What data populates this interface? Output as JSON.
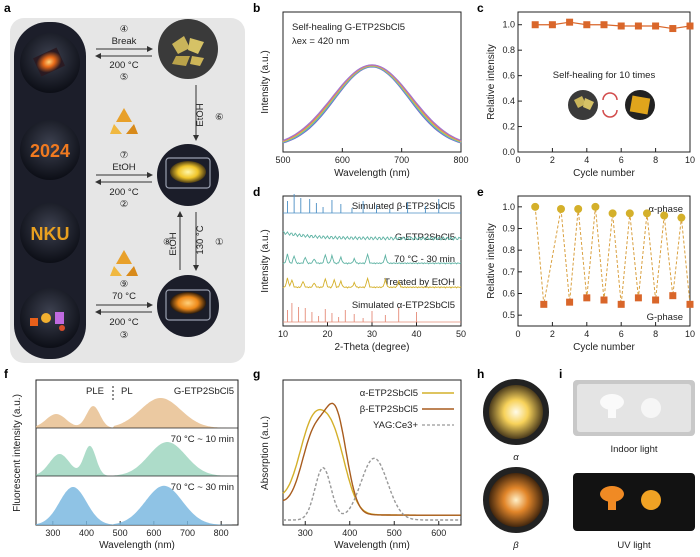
{
  "panel_letters": [
    "a",
    "b",
    "c",
    "d",
    "e",
    "f",
    "g",
    "h",
    "i"
  ],
  "colors": {
    "orange": "#d9662a",
    "gold": "#d4b02a",
    "blue": "#4b8fc4",
    "teal": "#5fb3a4",
    "salmon": "#e58b78",
    "brown": "#a85c1e",
    "peach": "#e8bf90",
    "mint": "#9fd6c0",
    "sky": "#7bb8e0",
    "gray": "#999999"
  },
  "panel_a": {
    "steps": {
      "s4": "④",
      "break": "Break",
      "t200a": "200 °C",
      "s5": "⑤",
      "etoh6": "EtOH",
      "s6": "⑥",
      "s7": "⑦",
      "etoh7": "EtOH",
      "t200b": "200 °C",
      "s2": "②",
      "s8": "⑧",
      "etoh8": "EtOH",
      "t130": "130 °C",
      "s1": "①",
      "s9": "⑨",
      "t70": "70 °C",
      "t200c": "200 °C",
      "s3": "③"
    },
    "glow_labels": {
      "year": "2024",
      "nku": "NKU"
    },
    "icons": [
      "recycle-icon",
      "recycle-icon"
    ]
  },
  "chart_data": [
    {
      "panel": "b",
      "type": "line",
      "title": "Self-healing G-ETP2SbCl5",
      "excitation": "λex = 420 nm",
      "xlabel": "Wavelength (nm)",
      "ylabel": "Intensity (a.u.)",
      "xlim": [
        500,
        800
      ],
      "xticks": [
        500,
        600,
        700,
        800
      ],
      "series_count": 10,
      "peak_x": 650
    },
    {
      "panel": "c",
      "type": "line",
      "xlabel": "Cycle number",
      "ylabel": "Relative intensity",
      "xlim": [
        0,
        10
      ],
      "ylim": [
        0.0,
        1.1
      ],
      "xticks": [
        0,
        2,
        4,
        6,
        8,
        10
      ],
      "yticks": [
        0.0,
        0.2,
        0.4,
        0.6,
        0.8,
        1.0
      ],
      "annotation": "Self-healing for 10 times",
      "x": [
        1,
        2,
        3,
        4,
        5,
        6,
        7,
        8,
        9,
        10
      ],
      "y": [
        1.0,
        1.0,
        1.02,
        1.0,
        1.0,
        0.99,
        0.99,
        0.99,
        0.97,
        0.99
      ]
    },
    {
      "panel": "d",
      "type": "line",
      "xlabel": "2-Theta (degree)",
      "ylabel": "Intensity (a.u.)",
      "xlim": [
        10,
        50
      ],
      "xticks": [
        10,
        20,
        30,
        40,
        50
      ],
      "series": [
        {
          "name": "Simulated β-ETP2SbCl5"
        },
        {
          "name": "G-ETP2SbCl5"
        },
        {
          "name": "70 °C - 30 min"
        },
        {
          "name": "Treated by EtOH"
        },
        {
          "name": "Simulated α-ETP2SbCl5"
        }
      ]
    },
    {
      "panel": "e",
      "type": "line",
      "xlabel": "Cycle number",
      "ylabel": "Relative intensity",
      "xlim": [
        0,
        10
      ],
      "ylim": [
        0.45,
        1.05
      ],
      "xticks": [
        0,
        2,
        4,
        6,
        8,
        10
      ],
      "yticks": [
        0.5,
        0.6,
        0.7,
        0.8,
        0.9,
        1.0
      ],
      "labels": {
        "alpha": "α-phase",
        "g": "G-phase"
      },
      "alpha_x": [
        1,
        2.5,
        3.5,
        4.5,
        5.5,
        6.5,
        7.5,
        8.5,
        9.5
      ],
      "alpha_y": [
        1.0,
        0.99,
        0.99,
        1.0,
        0.97,
        0.97,
        0.97,
        0.96,
        0.95
      ],
      "g_x": [
        1.5,
        3,
        4,
        5,
        6,
        7,
        8,
        9,
        10
      ],
      "g_y": [
        0.55,
        0.56,
        0.58,
        0.57,
        0.55,
        0.58,
        0.57,
        0.59,
        0.55
      ]
    },
    {
      "panel": "f",
      "type": "area",
      "xlabel": "Wavelength (nm)",
      "ylabel": "Fluorescent intensity (a.u.)",
      "xlim": [
        250,
        850
      ],
      "xticks": [
        300,
        400,
        500,
        600,
        700,
        800
      ],
      "labels": {
        "ple": "PLE",
        "pl": "PL"
      },
      "series": [
        {
          "name": "G-ETP2SbCl5"
        },
        {
          "name": "70 °C ~ 10 min"
        },
        {
          "name": "70 °C ~ 30 min"
        }
      ]
    },
    {
      "panel": "g",
      "type": "line",
      "xlabel": "Wavelength (nm)",
      "ylabel": "Absorption (a.u.)",
      "xlim": [
        250,
        650
      ],
      "xticks": [
        300,
        400,
        500,
        600
      ],
      "series": [
        {
          "name": "α-ETP2SbCl5"
        },
        {
          "name": "β-ETP2SbCl5"
        },
        {
          "name": "YAG:Ce3+"
        }
      ]
    }
  ],
  "panel_h": {
    "alpha": "α",
    "beta": "β"
  },
  "panel_i": {
    "indoor": "Indoor light",
    "uv": "UV light"
  }
}
